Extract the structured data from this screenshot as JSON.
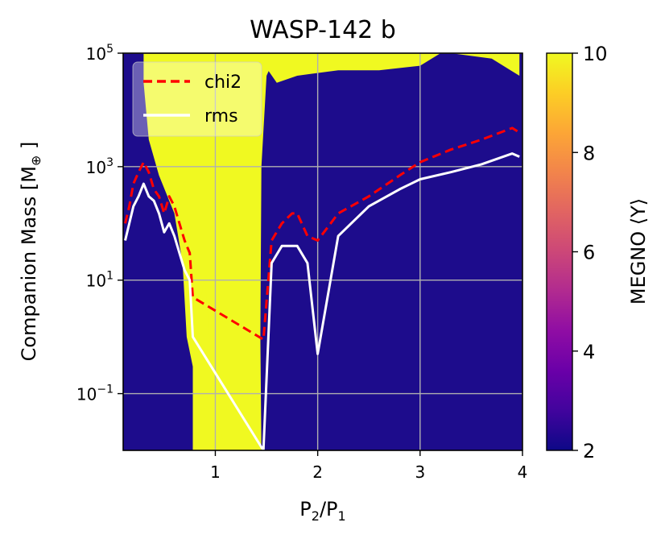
{
  "chart_data": {
    "type": "heatmap",
    "title": "WASP-142 b",
    "xlabel": "P2/P1",
    "xlabel_main": "P",
    "xlabel_sub1": "2",
    "xlabel_slash": "/P",
    "xlabel_sub2": "1",
    "ylabel": "Companion Mass [M⊕]",
    "ylabel_main": "Companion Mass [M",
    "ylabel_sub": "⊕",
    "ylabel_end": " ]",
    "xlim": [
      0.1,
      4.0
    ],
    "ylim": [
      0.01,
      100000
    ],
    "yscale": "log",
    "x_ticks": [
      1,
      2,
      3,
      4
    ],
    "x_tick_labels": [
      "1",
      "2",
      "3",
      "4"
    ],
    "y_ticks": [
      {
        "value": 0.1,
        "base": "10",
        "exp": "−1"
      },
      {
        "value": 10,
        "base": "10",
        "exp": "1"
      },
      {
        "value": 1000,
        "base": "10",
        "exp": "3"
      },
      {
        "value": 100000,
        "base": "10",
        "exp": "5"
      }
    ],
    "grid": true,
    "colorbar": {
      "label": "MEGNO ⟨Y⟩",
      "range": [
        2,
        10
      ],
      "ticks": [
        2,
        4,
        6,
        8,
        10
      ],
      "tick_labels": [
        "2",
        "4",
        "6",
        "8",
        "10"
      ],
      "colormap": "plasma"
    },
    "heatmap_description_values": {
      "stable_value": 2,
      "chaotic_value": 10
    },
    "legend": {
      "placement": "top-left",
      "entries": [
        {
          "label": "chi2",
          "color": "#ff0000",
          "style": "dashed"
        },
        {
          "label": "rms",
          "color": "#ffffff",
          "style": "solid"
        }
      ]
    },
    "series": [
      {
        "name": "chi2",
        "x": [
          0.12,
          0.16,
          0.2,
          0.25,
          0.3,
          0.35,
          0.4,
          0.45,
          0.5,
          0.55,
          0.6,
          0.65,
          0.7,
          0.75,
          0.78,
          1.47,
          1.55,
          1.65,
          1.75,
          1.8,
          1.9,
          2.0,
          2.2,
          2.5,
          2.8,
          3.0,
          3.3,
          3.6,
          3.9,
          3.97
        ],
        "y": [
          100,
          200,
          500,
          800,
          1200,
          800,
          400,
          300,
          150,
          300,
          200,
          100,
          50,
          30,
          5,
          0.9,
          50,
          100,
          150,
          150,
          60,
          50,
          150,
          300,
          700,
          1200,
          2000,
          3000,
          4800,
          4000
        ]
      },
      {
        "name": "rms",
        "x": [
          0.12,
          0.16,
          0.2,
          0.25,
          0.3,
          0.35,
          0.4,
          0.45,
          0.5,
          0.55,
          0.6,
          0.65,
          0.7,
          0.75,
          0.78,
          1.47,
          1.55,
          1.65,
          1.75,
          1.8,
          1.9,
          2.0,
          2.2,
          2.5,
          2.8,
          3.0,
          3.3,
          3.6,
          3.9,
          3.97
        ],
        "y": [
          50,
          100,
          200,
          300,
          500,
          300,
          250,
          150,
          70,
          100,
          60,
          30,
          15,
          10,
          1,
          0.01,
          20,
          40,
          40,
          40,
          20,
          0.5,
          60,
          200,
          400,
          600,
          800,
          1100,
          1700,
          1500
        ]
      }
    ]
  }
}
